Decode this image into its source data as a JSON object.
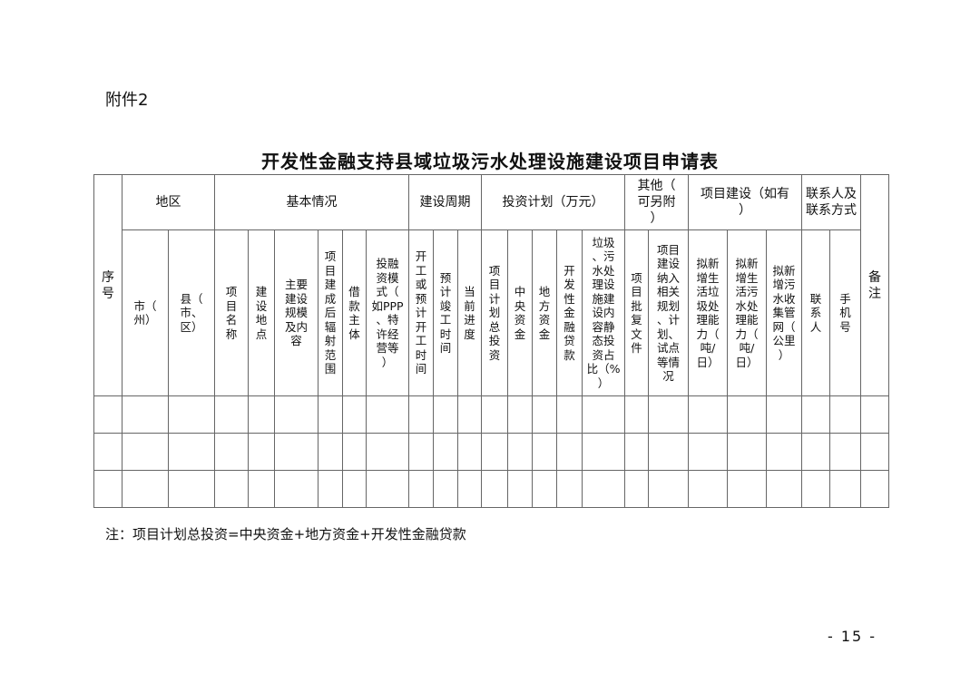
{
  "attachment_label": "附件2",
  "title": "开发性金融支持县域垃圾污水处理设施建设项目申请表",
  "groups": {
    "seq": "序\n号",
    "region": "地区",
    "basic": "基本情况",
    "period": "建设周期",
    "investment": "投资计划（万元）",
    "other": "其他（\n可另附\n）",
    "construction": "项目建设（如有\n）",
    "contact": "联系人及\n联系方式",
    "remarks": "备\n注"
  },
  "columns": [
    "市（\n州）",
    "县（\n市、\n区）",
    "项\n目\n名\n称",
    "建\n设\n地\n点",
    "主要\n建设\n规模\n及内\n容",
    "项\n目\n建\n成\n后\n辐\n射\n范\n围",
    "借\n款\n主\n体",
    "投融\n资模\n式（\n如PPP\n、特\n许经\n营等\n）",
    "开\n工\n或\n预\n计\n开\n工\n时\n间",
    "预\n计\n竣\n工\n时\n间",
    "当\n前\n进\n度",
    "项\n目\n计\n划\n总\n投\n资",
    "中\n央\n资\n金",
    "地\n方\n资\n金",
    "开\n发\n性\n金\n融\n贷\n款",
    "垃圾\n、污\n水处\n理设\n施建\n设内\n容静\n态投\n资占\n比（%\n）",
    "项\n目\n批\n复\n文\n件",
    "项目\n建设\n纳入\n相关\n规划\n、计\n划、\n试点\n等情\n况",
    "拟新\n增生\n活垃\n圾处\n理能\n力（\n吨/\n日）",
    "拟新\n增生\n活污\n水处\n理能\n力（\n吨/\n日）",
    "拟新\n增污\n水收\n集管\n网（\n公里\n）",
    "联\n系\n人",
    "手\n机\n号"
  ],
  "empty_rows": 3,
  "note": "注：项目计划总投资=中央资金+地方资金+开发性金融贷款",
  "page_number": "- 15 -"
}
